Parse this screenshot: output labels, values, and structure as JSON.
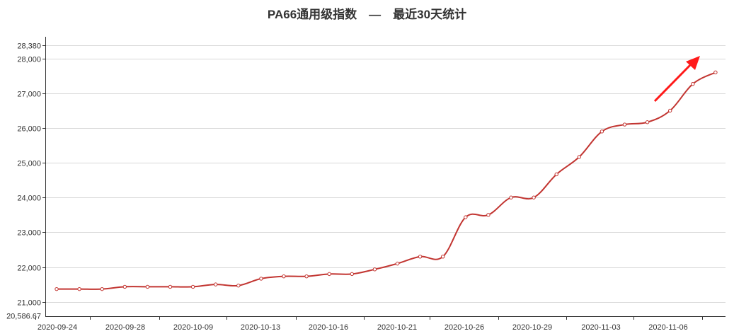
{
  "title": "PA66通用级指数　—　最近30天统计",
  "colors": {
    "line": "#c23531",
    "grid": "#d9d9d9",
    "axis": "#333333",
    "arrow": "#ff1a1a"
  },
  "chart_data": {
    "type": "line",
    "title": "PA66通用级指数　—　最近30天统计",
    "xlabel": "",
    "ylabel": "",
    "ylim": [
      20586.67,
      28380
    ],
    "y_ticks": [
      21000,
      22000,
      23000,
      24000,
      25000,
      26000,
      27000,
      28000
    ],
    "y_tick_labels": [
      "21,000",
      "22,000",
      "23,000",
      "24,000",
      "25,000",
      "26,000",
      "27,000",
      "28,000"
    ],
    "y_min_label": "20,586.67",
    "y_max_label": "28,380",
    "x_labels": [
      "2020-09-24",
      "2020-09-28",
      "2020-10-09",
      "2020-10-13",
      "2020-10-16",
      "2020-10-21",
      "2020-10-26",
      "2020-10-29",
      "2020-11-03",
      "2020-11-06"
    ],
    "smooth": true,
    "grid": true,
    "series": [
      {
        "values": [
          21367,
          21367,
          21367,
          21433,
          21433,
          21433,
          21433,
          21500,
          21467,
          21667,
          21733,
          21733,
          21800,
          21800,
          21933,
          22100,
          22300,
          22300,
          23433,
          23500,
          24000,
          24000,
          24667,
          25167,
          25900,
          26100,
          26167,
          26500,
          27267,
          27600
        ]
      }
    ],
    "annotation": "red upward arrow near recent values"
  }
}
